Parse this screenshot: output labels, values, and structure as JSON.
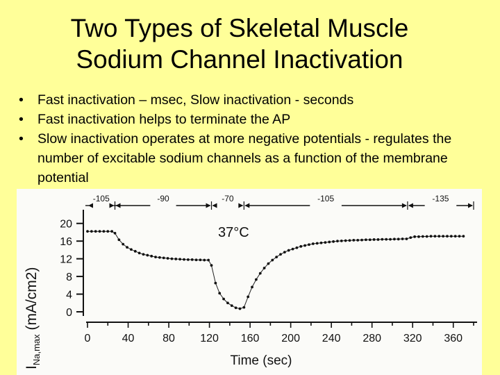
{
  "slide": {
    "title_line1": "Two Types of Skeletal Muscle",
    "title_line2": "Sodium Channel Inactivation",
    "bullets": [
      "Fast inactivation – msec, Slow inactivation - seconds",
      "Fast inactivation helps to terminate the AP",
      "Slow inactivation operates at more negative potentials - regulates the number of excitable sodium channels as a function of the membrane potential"
    ],
    "bullet_glyph": "•"
  },
  "chart_data": {
    "type": "scatter",
    "annotation": "37°C",
    "ylabel_main": "I",
    "ylabel_sub": "Na,max",
    "ylabel_rest": " (mA/cm2)",
    "xlabel": "Time (sec)",
    "xlim": [
      0,
      380
    ],
    "ylim": [
      0,
      22
    ],
    "x_ticks": [
      0,
      40,
      80,
      120,
      160,
      200,
      240,
      280,
      320,
      360
    ],
    "y_ticks": [
      0,
      4,
      8,
      12,
      16,
      20
    ],
    "protocol": [
      {
        "label": "-105",
        "start": 0,
        "end": 27
      },
      {
        "label": "-90",
        "start": 27,
        "end": 122
      },
      {
        "label": "-70",
        "start": 122,
        "end": 154
      },
      {
        "label": "-105",
        "start": 154,
        "end": 315
      },
      {
        "label": "-135",
        "start": 315,
        "end": 380
      }
    ],
    "series": [
      {
        "x": [
          0,
          4,
          8,
          12,
          16,
          20,
          24,
          27,
          31,
          35,
          39,
          43,
          47,
          51,
          55,
          59,
          63,
          67,
          71,
          75,
          79,
          83,
          87,
          91,
          95,
          99,
          103,
          107,
          111,
          115,
          119,
          122,
          126,
          130,
          134,
          138,
          142,
          146,
          150,
          154,
          158,
          162,
          166,
          170,
          174,
          178,
          182,
          186,
          190,
          194,
          198,
          202,
          206,
          210,
          214,
          218,
          222,
          226,
          230,
          234,
          238,
          242,
          246,
          250,
          254,
          258,
          262,
          266,
          270,
          274,
          278,
          282,
          286,
          290,
          294,
          298,
          302,
          306,
          310,
          314,
          318,
          322,
          326,
          330,
          334,
          338,
          342,
          346,
          350,
          354,
          358,
          362,
          366,
          370
        ],
        "y": [
          18.2,
          18.2,
          18.2,
          18.2,
          18.2,
          18.2,
          18.2,
          17.8,
          16.3,
          15.3,
          14.6,
          14.1,
          13.7,
          13.3,
          13.0,
          12.8,
          12.6,
          12.4,
          12.3,
          12.2,
          12.1,
          12.0,
          11.95,
          11.9,
          11.85,
          11.8,
          11.8,
          11.75,
          11.75,
          11.7,
          11.7,
          10.5,
          6.5,
          4.2,
          2.9,
          2.0,
          1.4,
          0.9,
          0.7,
          1.0,
          3.4,
          5.6,
          7.3,
          8.7,
          9.9,
          10.9,
          11.7,
          12.4,
          13.0,
          13.5,
          13.9,
          14.2,
          14.5,
          14.8,
          15.0,
          15.2,
          15.4,
          15.5,
          15.6,
          15.7,
          15.8,
          15.9,
          16.0,
          16.05,
          16.1,
          16.15,
          16.2,
          16.2,
          16.25,
          16.3,
          16.3,
          16.35,
          16.35,
          16.4,
          16.4,
          16.4,
          16.45,
          16.45,
          16.5,
          16.5,
          16.8,
          17.0,
          17.0,
          17.05,
          17.05,
          17.1,
          17.1,
          17.1,
          17.1,
          17.1,
          17.1,
          17.1,
          17.1,
          17.1
        ]
      }
    ]
  }
}
